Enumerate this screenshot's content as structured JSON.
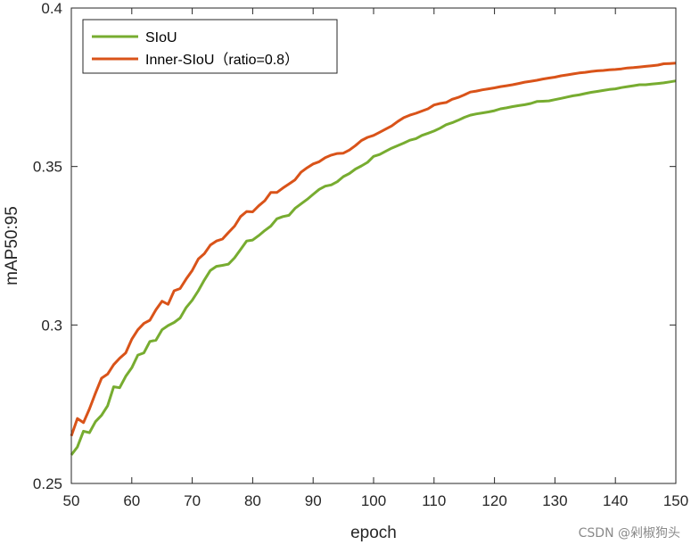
{
  "chart_data": {
    "type": "line",
    "title": "",
    "xlabel": "epoch",
    "ylabel": "mAP50:95",
    "xlim": [
      50,
      150
    ],
    "ylim": [
      0.25,
      0.4
    ],
    "xticks": [
      "50",
      "60",
      "70",
      "80",
      "90",
      "100",
      "110",
      "120",
      "130",
      "140",
      "150"
    ],
    "yticks": [
      "0.25",
      "0.3",
      "0.35",
      "0.4"
    ],
    "grid": false,
    "legend_position": "top-left",
    "series": [
      {
        "name": "SIoU",
        "color": "#77AC30",
        "x": [
          50,
          51,
          52,
          53,
          54,
          55,
          56,
          57,
          58,
          59,
          60,
          61,
          62,
          63,
          64,
          65,
          66,
          67,
          68,
          69,
          70,
          71,
          72,
          73,
          74,
          75,
          76,
          77,
          78,
          79,
          80,
          81,
          82,
          83,
          84,
          85,
          86,
          87,
          88,
          89,
          90,
          91,
          92,
          93,
          94,
          95,
          96,
          97,
          98,
          99,
          100,
          101,
          102,
          103,
          104,
          105,
          106,
          107,
          108,
          109,
          110,
          111,
          112,
          113,
          114,
          115,
          116,
          117,
          118,
          119,
          120,
          121,
          122,
          123,
          124,
          125,
          126,
          127,
          128,
          129,
          130,
          131,
          132,
          133,
          134,
          135,
          136,
          137,
          138,
          139,
          140,
          141,
          142,
          143,
          144,
          145,
          146,
          147,
          148,
          149,
          150
        ],
        "y": [
          0.259,
          0.2615,
          0.2665,
          0.266,
          0.2695,
          0.2715,
          0.2745,
          0.2805,
          0.2802,
          0.2838,
          0.2865,
          0.2905,
          0.2912,
          0.2948,
          0.2952,
          0.2985,
          0.2998,
          0.3008,
          0.3022,
          0.3055,
          0.3078,
          0.3108,
          0.3142,
          0.3172,
          0.3185,
          0.3188,
          0.3192,
          0.3212,
          0.3238,
          0.3265,
          0.3268,
          0.3282,
          0.3298,
          0.3312,
          0.3335,
          0.3342,
          0.3346,
          0.3368,
          0.3382,
          0.3396,
          0.3412,
          0.3428,
          0.3438,
          0.3442,
          0.3452,
          0.3468,
          0.3478,
          0.3492,
          0.3502,
          0.3513,
          0.3532,
          0.3538,
          0.3548,
          0.3558,
          0.3566,
          0.3574,
          0.3583,
          0.3588,
          0.3598,
          0.3605,
          0.3612,
          0.3621,
          0.3632,
          0.3638,
          0.3646,
          0.3655,
          0.3662,
          0.3666,
          0.3669,
          0.3672,
          0.3676,
          0.3682,
          0.3685,
          0.3689,
          0.3692,
          0.3695,
          0.3699,
          0.3705,
          0.3706,
          0.3707,
          0.3711,
          0.3715,
          0.3719,
          0.3723,
          0.3726,
          0.373,
          0.3734,
          0.3737,
          0.374,
          0.3743,
          0.3745,
          0.3749,
          0.3752,
          0.3755,
          0.3758,
          0.3758,
          0.376,
          0.3762,
          0.3764,
          0.3767,
          0.377
        ]
      },
      {
        "name": "Inner-SIoU（ratio=0.8）",
        "color": "#D95319",
        "x": [
          50,
          51,
          52,
          53,
          54,
          55,
          56,
          57,
          58,
          59,
          60,
          61,
          62,
          63,
          64,
          65,
          66,
          67,
          68,
          69,
          70,
          71,
          72,
          73,
          74,
          75,
          76,
          77,
          78,
          79,
          80,
          81,
          82,
          83,
          84,
          85,
          86,
          87,
          88,
          89,
          90,
          91,
          92,
          93,
          94,
          95,
          96,
          97,
          98,
          99,
          100,
          101,
          102,
          103,
          104,
          105,
          106,
          107,
          108,
          109,
          110,
          111,
          112,
          113,
          114,
          115,
          116,
          117,
          118,
          119,
          120,
          121,
          122,
          123,
          124,
          125,
          126,
          127,
          128,
          129,
          130,
          131,
          132,
          133,
          134,
          135,
          136,
          137,
          138,
          139,
          140,
          141,
          142,
          143,
          144,
          145,
          146,
          147,
          148,
          149,
          150
        ],
        "y": [
          0.265,
          0.2705,
          0.2692,
          0.2735,
          0.2785,
          0.2832,
          0.2845,
          0.2875,
          0.2895,
          0.2912,
          0.2955,
          0.2985,
          0.3005,
          0.3015,
          0.3048,
          0.3075,
          0.3065,
          0.3108,
          0.3115,
          0.3145,
          0.3172,
          0.3208,
          0.3225,
          0.3252,
          0.3265,
          0.3271,
          0.3292,
          0.3312,
          0.3342,
          0.3358,
          0.3357,
          0.3376,
          0.3392,
          0.3418,
          0.3418,
          0.3432,
          0.3445,
          0.3458,
          0.3482,
          0.3496,
          0.3508,
          0.3515,
          0.3528,
          0.3536,
          0.3541,
          0.3542,
          0.3552,
          0.3566,
          0.3582,
          0.3592,
          0.3598,
          0.3608,
          0.3618,
          0.3628,
          0.3642,
          0.3654,
          0.3662,
          0.3668,
          0.3675,
          0.3682,
          0.3694,
          0.3699,
          0.3702,
          0.3712,
          0.3718,
          0.3726,
          0.3735,
          0.3738,
          0.3742,
          0.3745,
          0.3748,
          0.3752,
          0.3755,
          0.3758,
          0.3762,
          0.3766,
          0.3769,
          0.3772,
          0.3776,
          0.3779,
          0.3782,
          0.3786,
          0.3789,
          0.3792,
          0.3795,
          0.3797,
          0.38,
          0.3802,
          0.3803,
          0.3805,
          0.3806,
          0.3808,
          0.3811,
          0.3812,
          0.3814,
          0.3816,
          0.3818,
          0.382,
          0.3824,
          0.3825,
          0.3826
        ]
      }
    ]
  },
  "watermark": "CSDN @剁椒狗头"
}
